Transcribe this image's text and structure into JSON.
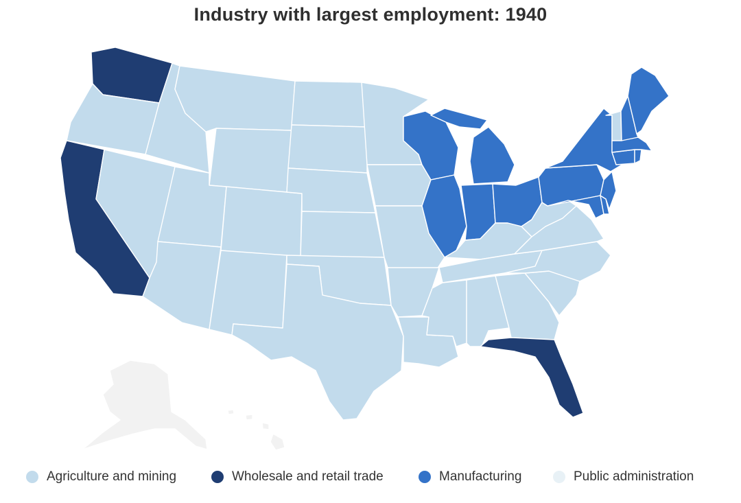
{
  "title": "Industry with largest employment: 1940",
  "categories": {
    "agriculture": {
      "label": "Agriculture and mining",
      "color": "#c2dbec"
    },
    "trade": {
      "label": "Wholesale and retail trade",
      "color": "#1f3d72"
    },
    "manufacturing": {
      "label": "Manufacturing",
      "color": "#3473c8"
    },
    "public": {
      "label": "Public administration",
      "color": "#e8f1f6"
    },
    "no_data": {
      "color": "#f2f2f2"
    }
  },
  "state_category": {
    "WA": "trade",
    "OR": "agriculture",
    "CA": "trade",
    "ID": "agriculture",
    "NV": "agriculture",
    "MT": "agriculture",
    "WY": "agriculture",
    "UT": "agriculture",
    "AZ": "agriculture",
    "CO": "agriculture",
    "NM": "agriculture",
    "ND": "agriculture",
    "SD": "agriculture",
    "NE": "agriculture",
    "KS": "agriculture",
    "OK": "agriculture",
    "TX": "agriculture",
    "MN": "agriculture",
    "IA": "agriculture",
    "MO": "agriculture",
    "AR": "agriculture",
    "LA": "agriculture",
    "WI": "manufacturing",
    "IL": "manufacturing",
    "MI": "manufacturing",
    "IN": "manufacturing",
    "OH": "manufacturing",
    "KY": "agriculture",
    "TN": "agriculture",
    "MS": "agriculture",
    "AL": "agriculture",
    "GA": "agriculture",
    "FL": "trade",
    "SC": "agriculture",
    "NC": "agriculture",
    "VA": "agriculture",
    "WV": "agriculture",
    "PA": "manufacturing",
    "NY": "manufacturing",
    "NJ": "manufacturing",
    "DE": "manufacturing",
    "MD": "manufacturing",
    "CT": "manufacturing",
    "RI": "manufacturing",
    "MA": "manufacturing",
    "VT": "agriculture",
    "NH": "manufacturing",
    "ME": "manufacturing",
    "AK": "no_data",
    "HI": "no_data"
  },
  "legend": [
    {
      "key": "agriculture",
      "label": "Agriculture and mining",
      "color": "#c2dbec"
    },
    {
      "key": "trade",
      "label": "Wholesale and retail trade",
      "color": "#1f3d72"
    },
    {
      "key": "manufacturing",
      "label": "Manufacturing",
      "color": "#3473c8"
    },
    {
      "key": "public",
      "label": "Public administration",
      "color": "#e8f1f6"
    }
  ]
}
